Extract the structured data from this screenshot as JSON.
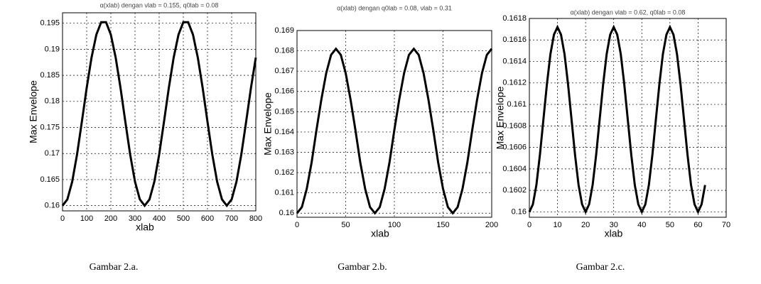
{
  "chart_data": [
    {
      "type": "line",
      "title": "α(xlab) dengan νlab = 0.155, q0lab = 0.08",
      "x_label": "xlab",
      "y_label": "Max Envelope",
      "caption": "Gambar 2.a.",
      "x": [
        0,
        20,
        40,
        60,
        80,
        100,
        120,
        140,
        160,
        180,
        200,
        220,
        240,
        260,
        280,
        300,
        320,
        340,
        360,
        380,
        400,
        420,
        440,
        460,
        480,
        500,
        520,
        540,
        560,
        580,
        600,
        620,
        640,
        660,
        680,
        700,
        720,
        740,
        760,
        780,
        800
      ],
      "series": [
        {
          "color": "#000000",
          "values": [
            0.16,
            0.1612,
            0.1646,
            0.1698,
            0.1761,
            0.1826,
            0.1884,
            0.1928,
            0.1952,
            0.1952,
            0.1928,
            0.1884,
            0.1826,
            0.1761,
            0.1698,
            0.1646,
            0.1612,
            0.16,
            0.1612,
            0.1646,
            0.1698,
            0.1761,
            0.1826,
            0.1884,
            0.1928,
            0.1952,
            0.1952,
            0.1928,
            0.1884,
            0.1826,
            0.1761,
            0.1698,
            0.1646,
            0.1612,
            0.16,
            0.1612,
            0.1646,
            0.1698,
            0.1761,
            0.1826,
            0.1884
          ]
        }
      ],
      "xlim": [
        0,
        800
      ],
      "xticks": [
        0,
        100,
        200,
        300,
        400,
        500,
        600,
        700,
        800
      ],
      "ylim": [
        0.159,
        0.197
      ],
      "yticks": [
        0.16,
        0.165,
        0.17,
        0.175,
        0.18,
        0.185,
        0.19,
        0.195
      ],
      "grid": true
    },
    {
      "type": "line",
      "title": "α(xlab) dengan q0lab = 0.08, νlab = 0.31",
      "x_label": "xlab",
      "y_label": "Max Envelope",
      "caption": "Gambar 2.b.",
      "x": [
        0,
        5,
        10,
        15,
        20,
        25,
        30,
        35,
        40,
        45,
        50,
        55,
        60,
        65,
        70,
        75,
        80,
        85,
        90,
        95,
        100,
        105,
        110,
        115,
        120,
        125,
        130,
        135,
        140,
        145,
        150,
        155,
        160,
        165,
        170,
        175,
        180,
        185,
        190,
        195,
        200
      ],
      "series": [
        {
          "color": "#000000",
          "values": [
            0.16,
            0.1603,
            0.1612,
            0.1625,
            0.1641,
            0.1656,
            0.1669,
            0.1678,
            0.1681,
            0.1678,
            0.1669,
            0.1656,
            0.1641,
            0.1625,
            0.1612,
            0.1603,
            0.16,
            0.1603,
            0.1612,
            0.1625,
            0.1641,
            0.1656,
            0.1669,
            0.1678,
            0.1681,
            0.1678,
            0.1669,
            0.1656,
            0.1641,
            0.1625,
            0.1612,
            0.1603,
            0.16,
            0.1603,
            0.1612,
            0.1625,
            0.1641,
            0.1656,
            0.1669,
            0.1678,
            0.1681
          ]
        }
      ],
      "xlim": [
        0,
        200
      ],
      "xticks": [
        0,
        50,
        100,
        150,
        200
      ],
      "ylim": [
        0.1598,
        0.169
      ],
      "yticks": [
        0.16,
        0.161,
        0.162,
        0.163,
        0.164,
        0.165,
        0.166,
        0.167,
        0.168,
        0.169
      ],
      "grid": true
    },
    {
      "type": "line",
      "title": "α(xlab) dengan νlab = 0.62, q0lab = 0.08",
      "x_label": "xlab",
      "y_label": "Max Envelope",
      "caption": "Gambar 2.c.",
      "x": [
        0,
        1.25,
        2.5,
        3.75,
        5,
        6.25,
        7.5,
        8.75,
        10,
        11.25,
        12.5,
        13.75,
        15,
        16.25,
        17.5,
        18.75,
        20,
        21.25,
        22.5,
        23.75,
        25,
        26.25,
        27.5,
        28.75,
        30,
        31.25,
        32.5,
        33.75,
        35,
        36.25,
        37.5,
        38.75,
        40,
        41.25,
        42.5,
        43.75,
        45,
        46.25,
        47.5,
        48.75,
        50,
        51.25,
        52.5,
        53.75,
        55,
        56.25,
        57.5,
        58.75,
        60,
        61.25,
        62.5
      ],
      "series": [
        {
          "color": "#000000",
          "values": [
            0.16,
            0.16007,
            0.16025,
            0.16053,
            0.16086,
            0.16119,
            0.16147,
            0.16165,
            0.16172,
            0.16165,
            0.16147,
            0.16119,
            0.16086,
            0.16053,
            0.16025,
            0.16007,
            0.16,
            0.16007,
            0.16025,
            0.16053,
            0.16086,
            0.16119,
            0.16147,
            0.16165,
            0.16172,
            0.16165,
            0.16147,
            0.16119,
            0.16086,
            0.16053,
            0.16025,
            0.16007,
            0.16,
            0.16007,
            0.16025,
            0.16053,
            0.16086,
            0.16119,
            0.16147,
            0.16165,
            0.16172,
            0.16165,
            0.16147,
            0.16119,
            0.16086,
            0.16053,
            0.16025,
            0.16007,
            0.16,
            0.16007,
            0.16025
          ]
        }
      ],
      "xlim": [
        0,
        70
      ],
      "xticks": [
        0,
        10,
        20,
        30,
        40,
        50,
        60,
        70
      ],
      "ylim": [
        0.15995,
        0.1618
      ],
      "yticks": [
        0.16,
        0.1602,
        0.1604,
        0.1606,
        0.1608,
        0.161,
        0.1612,
        0.1614,
        0.1616,
        0.1618
      ],
      "grid": true
    }
  ]
}
